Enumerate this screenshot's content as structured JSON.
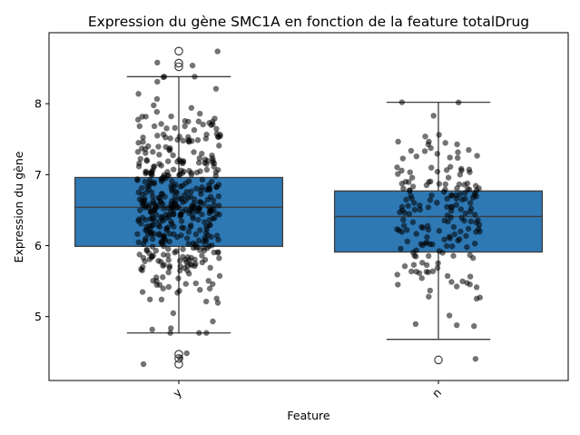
{
  "chart_data": {
    "type": "boxplot",
    "title": "Expression du gène SMC1A en fonction de la feature totalDrug",
    "xlabel": "Feature",
    "ylabel": "Expression du gène",
    "categories": [
      "y",
      "n"
    ],
    "ylim": [
      4.1,
      9.0
    ],
    "yticks": [
      5,
      6,
      7,
      8
    ],
    "box_color": "#2e78b4",
    "point_color": "#000000",
    "series": [
      {
        "category": "y",
        "q1": 5.99,
        "median": 6.54,
        "q3": 6.96,
        "whisker_low": 4.77,
        "whisker_high": 8.38,
        "outliers": [
          8.74,
          8.57,
          8.52,
          4.47,
          4.41,
          4.33
        ],
        "n_points": 460,
        "seed": 7
      },
      {
        "category": "n",
        "q1": 5.91,
        "median": 6.41,
        "q3": 6.77,
        "whisker_low": 4.68,
        "whisker_high": 8.02,
        "outliers": [
          4.39
        ],
        "n_points": 190,
        "seed": 13
      }
    ]
  }
}
